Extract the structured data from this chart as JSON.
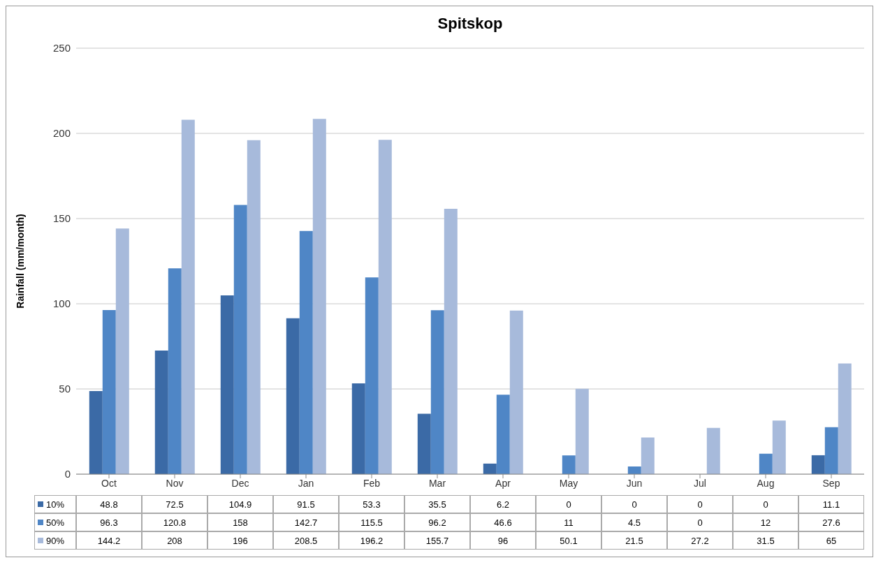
{
  "chart_data": {
    "type": "bar",
    "title": "Spitskop",
    "ylabel": "Rainfall (mm/month)",
    "categories": [
      "Oct",
      "Nov",
      "Dec",
      "Jan",
      "Feb",
      "Mar",
      "Apr",
      "May",
      "Jun",
      "Jul",
      "Aug",
      "Sep"
    ],
    "series": [
      {
        "name": "10%",
        "color": "#3b6aa6",
        "values": [
          48.8,
          72.5,
          104.9,
          91.5,
          53.3,
          35.5,
          6.2,
          0,
          0,
          0,
          0,
          11.1
        ]
      },
      {
        "name": "50%",
        "color": "#4f86c6",
        "values": [
          96.3,
          120.8,
          158,
          142.7,
          115.5,
          96.2,
          46.6,
          11,
          4.5,
          0,
          12,
          27.6
        ]
      },
      {
        "name": "90%",
        "color": "#a7badb",
        "values": [
          144.2,
          208,
          196,
          208.5,
          196.2,
          155.7,
          96,
          50.1,
          21.5,
          27.2,
          31.5,
          65
        ]
      }
    ],
    "ylim": [
      0,
      250
    ],
    "yticks": [
      0,
      50,
      100,
      150,
      200,
      250
    ],
    "grid": "y",
    "legend": "bottom",
    "data_labels": true
  }
}
